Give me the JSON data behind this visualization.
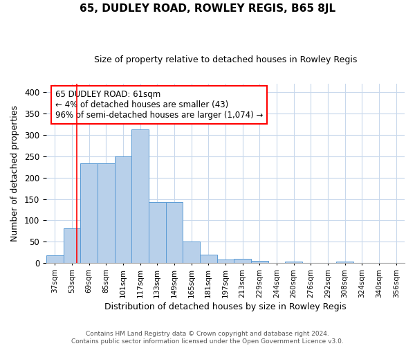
{
  "title": "65, DUDLEY ROAD, ROWLEY REGIS, B65 8JL",
  "subtitle": "Size of property relative to detached houses in Rowley Regis",
  "xlabel": "Distribution of detached houses by size in Rowley Regis",
  "ylabel": "Number of detached properties",
  "footer_line1": "Contains HM Land Registry data © Crown copyright and database right 2024.",
  "footer_line2": "Contains public sector information licensed under the Open Government Licence v3.0.",
  "categories": [
    "37sqm",
    "53sqm",
    "69sqm",
    "85sqm",
    "101sqm",
    "117sqm",
    "133sqm",
    "149sqm",
    "165sqm",
    "181sqm",
    "197sqm",
    "213sqm",
    "229sqm",
    "244sqm",
    "260sqm",
    "276sqm",
    "292sqm",
    "308sqm",
    "324sqm",
    "340sqm",
    "356sqm"
  ],
  "values": [
    18,
    82,
    233,
    233,
    250,
    313,
    142,
    142,
    50,
    20,
    8,
    10,
    5,
    0,
    3,
    0,
    0,
    3,
    0,
    0,
    0
  ],
  "bar_color": "#b8d0ea",
  "bar_edge_color": "#5b9bd5",
  "grid_color": "#c8d8ec",
  "background_color": "#ffffff",
  "annotation_line1": "65 DUDLEY ROAD: 61sqm",
  "annotation_line2": "← 4% of detached houses are smaller (43)",
  "annotation_line3": "96% of semi-detached houses are larger (1,074) →",
  "red_line_x": 1.3,
  "ylim": [
    0,
    420
  ],
  "yticks": [
    0,
    50,
    100,
    150,
    200,
    250,
    300,
    350,
    400
  ]
}
